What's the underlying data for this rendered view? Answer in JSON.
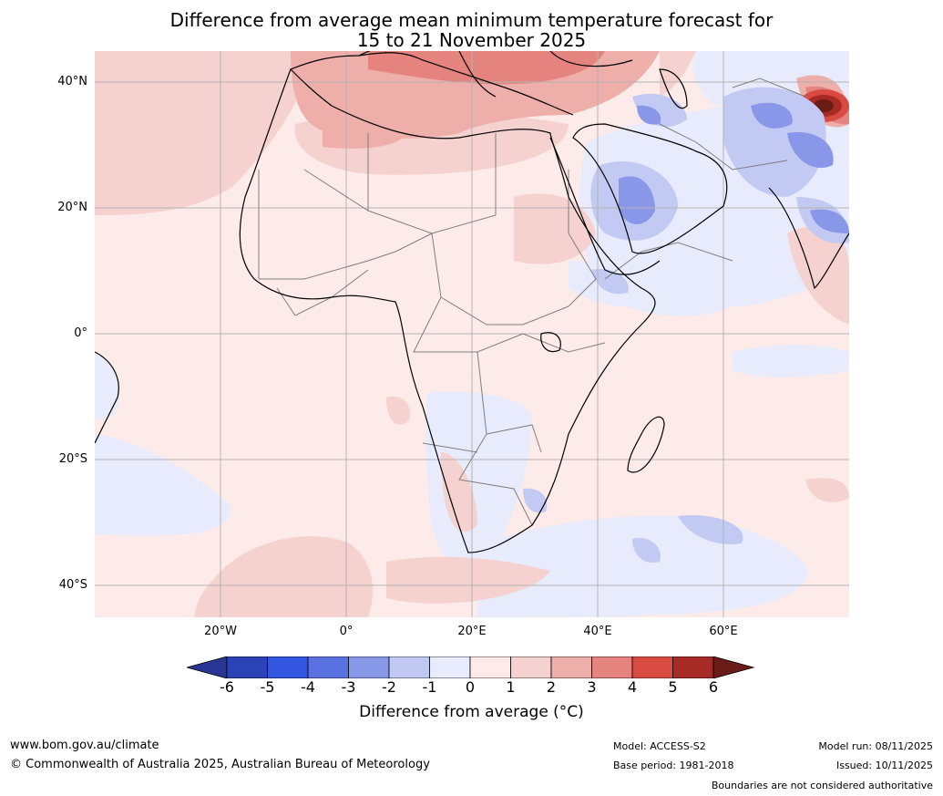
{
  "title": {
    "line1": "Difference from average mean minimum temperature forecast for",
    "line2": "15 to 21 November 2025"
  },
  "map": {
    "latitude_labels": [
      "40°N",
      "20°N",
      "0°",
      "20°S",
      "40°S"
    ],
    "longitude_labels": [
      "20°W",
      "0°",
      "20°E",
      "40°E",
      "60°E"
    ],
    "colors": {
      "ocean_neutral_warm": "#fcebe9",
      "light_cool": "#e8ebfb",
      "warm_1_2": "#f5d2d0",
      "warm_2_3": "#eeaeaa",
      "warm_3_4": "#e5847f",
      "warm_4_5": "#d94b42",
      "warm_5_6": "#a82a25",
      "warm_6_plus": "#6b1c17",
      "cool_1_2": "#c2c9f2",
      "cool_2_3": "#8897e8",
      "cool_3_4": "#5a6fe0",
      "cool_4_5": "#3455e0",
      "border": "#7f7f7f",
      "coast": "#000000",
      "grid": "#b3b3b3"
    }
  },
  "colorbar": {
    "ticks": [
      "-6",
      "-5",
      "-4",
      "-3",
      "-2",
      "-1",
      "0",
      "1",
      "2",
      "3",
      "4",
      "5",
      "6"
    ],
    "colors": [
      "#283593",
      "#2c43b8",
      "#3455e0",
      "#5a72e1",
      "#8798e8",
      "#c1c8f2",
      "#e8ebfb",
      "#fcebe9",
      "#f5d2d0",
      "#eeaeaa",
      "#e5847f",
      "#d94b42",
      "#a82a25",
      "#6b1c17"
    ],
    "title": "Difference from average (°C)"
  },
  "footer": {
    "website": "www.bom.gov.au/climate",
    "copyright": "© Commonwealth of Australia 2025, Australian Bureau of Meteorology",
    "model": "Model: ACCESS-S2",
    "base_period": "Base period: 1981-2018",
    "model_run": "Model run: 08/11/2025",
    "issued": "Issued: 10/11/2025",
    "disclaimer": "Boundaries are not considered authoritative"
  }
}
